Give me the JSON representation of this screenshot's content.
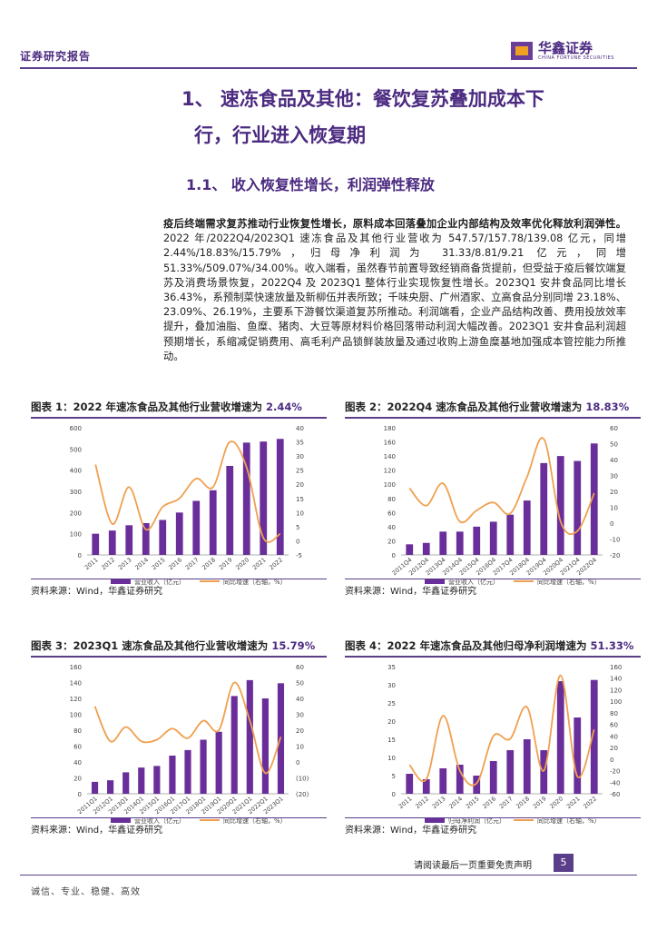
{
  "header": {
    "label": "证券研究报告",
    "logo_cn": "华鑫证券",
    "logo_en": "CHINA FORTUNE SECURITIES"
  },
  "h1": {
    "line1": "1、 速冻食品及其他：餐饮复苏叠加成本下",
    "line2": "行，行业进入恢复期"
  },
  "h2": "1.1、 收入恢复性增长，利润弹性释放",
  "paragraph": {
    "bold": "疫后终端需求复苏推动行业恢复性增长，原料成本回落叠加企业内部结构及效率优化释放利润弹性。",
    "rest": "2022 年/2022Q4/2023Q1 速冻食品及其他行业营收为 547.57/157.78/139.08 亿元，同增 2.44%/18.83%/15.79%，归母净利润为 31.33/8.81/9.21 亿元，同增 51.33%/509.07%/34.00%。收入端看，虽然春节前置导致经销商备货提前，但受益于疫后餐饮端复苏及消费场景恢复，2022Q4 及 2023Q1 整体行业实现恢复性增长。2023Q1 安井食品同比增长 36.43%，系预制菜快速放量及新柳伍并表所致；千味央厨、广州酒家、立高食品分别同增 23.18%、23.09%、26.19%，主要系下游餐饮渠道复苏所推动。利润端看，企业产品结构改善、费用投放效率提升，叠加油脂、鱼糜、猪肉、大豆等原材料价格回落带动利润大幅改善。2023Q1 安井食品利润超预期增长，系缩减促销费用、高毛利产品锁鲜装放量及通过收购上游鱼糜基地加强成本管控能力所推动。"
  },
  "figures": [
    {
      "label": "图表 1：",
      "title": "2022 年速冻食品及其他行业营收增速为 ",
      "value": "2.44%",
      "source": "资料来源：Wind，华鑫证券研究"
    },
    {
      "label": "图表 2：",
      "title": "2022Q4 速冻食品及其他行业营收增速为 ",
      "value": "18.83%",
      "source": "资料来源：Wind，华鑫证券研究"
    },
    {
      "label": "图表 3：",
      "title": "2023Q1 速冻食品及其他行业营收增速为 ",
      "value": "15.79%",
      "source": "资料来源：Wind，华鑫证券研究"
    },
    {
      "label": "图表 4：",
      "title": "2022 年速冻食品及其他归母净利润增速为 ",
      "value": "51.33%",
      "source": "资料来源：Wind，华鑫证券研究"
    }
  ],
  "chart_data": [
    {
      "type": "bar",
      "categories": [
        "2011",
        "2012",
        "2013",
        "2014",
        "2015",
        "2016",
        "2017",
        "2018",
        "2019",
        "2020",
        "2021",
        "2022"
      ],
      "series": [
        {
          "name": "营业收入（亿元）",
          "type": "bar",
          "values": [
            100,
            115,
            140,
            150,
            165,
            200,
            255,
            305,
            420,
            530,
            535,
            547.57
          ]
        },
        {
          "name": "同比增速（右轴，%）",
          "type": "line",
          "axis": "right",
          "values": [
            27,
            6,
            19,
            4,
            12,
            15,
            22,
            19,
            35,
            26,
            1,
            2.44
          ]
        }
      ],
      "left_ticks": [
        "600",
        "500",
        "400",
        "300",
        "200",
        "100",
        "0"
      ],
      "right_ticks": [
        "40",
        "35",
        "30",
        "25",
        "20",
        "15",
        "10",
        "5",
        "0",
        "-5"
      ],
      "ylim": [
        0,
        600
      ],
      "y2lim": [
        -5,
        40
      ],
      "legend": "bottom"
    },
    {
      "type": "bar",
      "categories": [
        "2011Q4",
        "2012Q4",
        "2013Q4",
        "2014Q4",
        "2015Q4",
        "2016Q4",
        "2017Q4",
        "2018Q4",
        "2019Q4",
        "2020Q4",
        "2021Q4",
        "2022Q4"
      ],
      "series": [
        {
          "name": "营业收入（亿元）",
          "type": "bar",
          "values": [
            15,
            17,
            33,
            33,
            40,
            47,
            57,
            77,
            130,
            140,
            133,
            157.78
          ]
        },
        {
          "name": "同比增速（右轴，%）",
          "type": "line",
          "axis": "right",
          "values": [
            22,
            11,
            25,
            1,
            8,
            13,
            6,
            29,
            53,
            1,
            -5,
            18.83
          ]
        }
      ],
      "left_ticks": [
        "180",
        "160",
        "140",
        "120",
        "100",
        "80",
        "60",
        "40",
        "20",
        "0"
      ],
      "right_ticks": [
        "60",
        "50",
        "40",
        "30",
        "20",
        "10",
        "0",
        "-10",
        "-20"
      ],
      "ylim": [
        0,
        180
      ],
      "y2lim": [
        -20,
        60
      ],
      "legend": "bottom"
    },
    {
      "type": "bar",
      "categories": [
        "2011Q1",
        "2012Q1",
        "2013Q1",
        "2014Q1",
        "2015Q1",
        "2016Q1",
        "2017Q1",
        "2018Q1",
        "2019Q1",
        "2020Q1",
        "2021Q1",
        "2022Q1",
        "2023Q1"
      ],
      "series": [
        {
          "name": "营业收入（亿元）",
          "type": "bar",
          "values": [
            15,
            17,
            27,
            33,
            35,
            48,
            55,
            68,
            78,
            123,
            143,
            120,
            139.08
          ]
        },
        {
          "name": "同比增速（右轴，%）",
          "type": "line",
          "axis": "right",
          "values": [
            35,
            13,
            22,
            13,
            14,
            21,
            15,
            26,
            20,
            50,
            26,
            -7,
            15.79
          ]
        }
      ],
      "left_ticks": [
        "160",
        "140",
        "120",
        "100",
        "80",
        "60",
        "40",
        "20",
        "0"
      ],
      "right_ticks": [
        "60",
        "50",
        "40",
        "30",
        "20",
        "10",
        "0",
        "(10)",
        "(20)"
      ],
      "ylim": [
        0,
        160
      ],
      "y2lim": [
        -20,
        60
      ],
      "legend": "bottom"
    },
    {
      "type": "bar",
      "categories": [
        "2011",
        "2012",
        "2013",
        "2014",
        "2015",
        "2016",
        "2017",
        "2018",
        "2019",
        "2020",
        "2021",
        "2022"
      ],
      "series": [
        {
          "name": "归母净利润（亿元）",
          "type": "bar",
          "values": [
            5.5,
            4,
            7,
            8,
            5,
            9,
            12,
            15,
            12,
            31,
            21,
            31.33
          ]
        },
        {
          "name": "同比增速（右轴，%）",
          "type": "line",
          "axis": "right",
          "values": [
            -10,
            -35,
            75,
            -20,
            -42,
            40,
            35,
            90,
            -20,
            145,
            -30,
            51.33
          ]
        }
      ],
      "left_ticks": [
        "35",
        "30",
        "25",
        "20",
        "15",
        "10",
        "5",
        "0"
      ],
      "right_ticks": [
        "160",
        "140",
        "120",
        "100",
        "80",
        "60",
        "40",
        "20",
        "0",
        "-20",
        "-40",
        "-60"
      ],
      "ylim": [
        0,
        35
      ],
      "y2lim": [
        -60,
        160
      ],
      "legend": "bottom"
    }
  ],
  "footer": {
    "disclaimer": "请阅读最后一页重要免责声明",
    "page": "5",
    "motto": "诚信、专业、稳健、高效"
  },
  "colors": {
    "brand": "#5a3e8a",
    "bar": "#6a2e9a",
    "line": "#f0a050"
  }
}
